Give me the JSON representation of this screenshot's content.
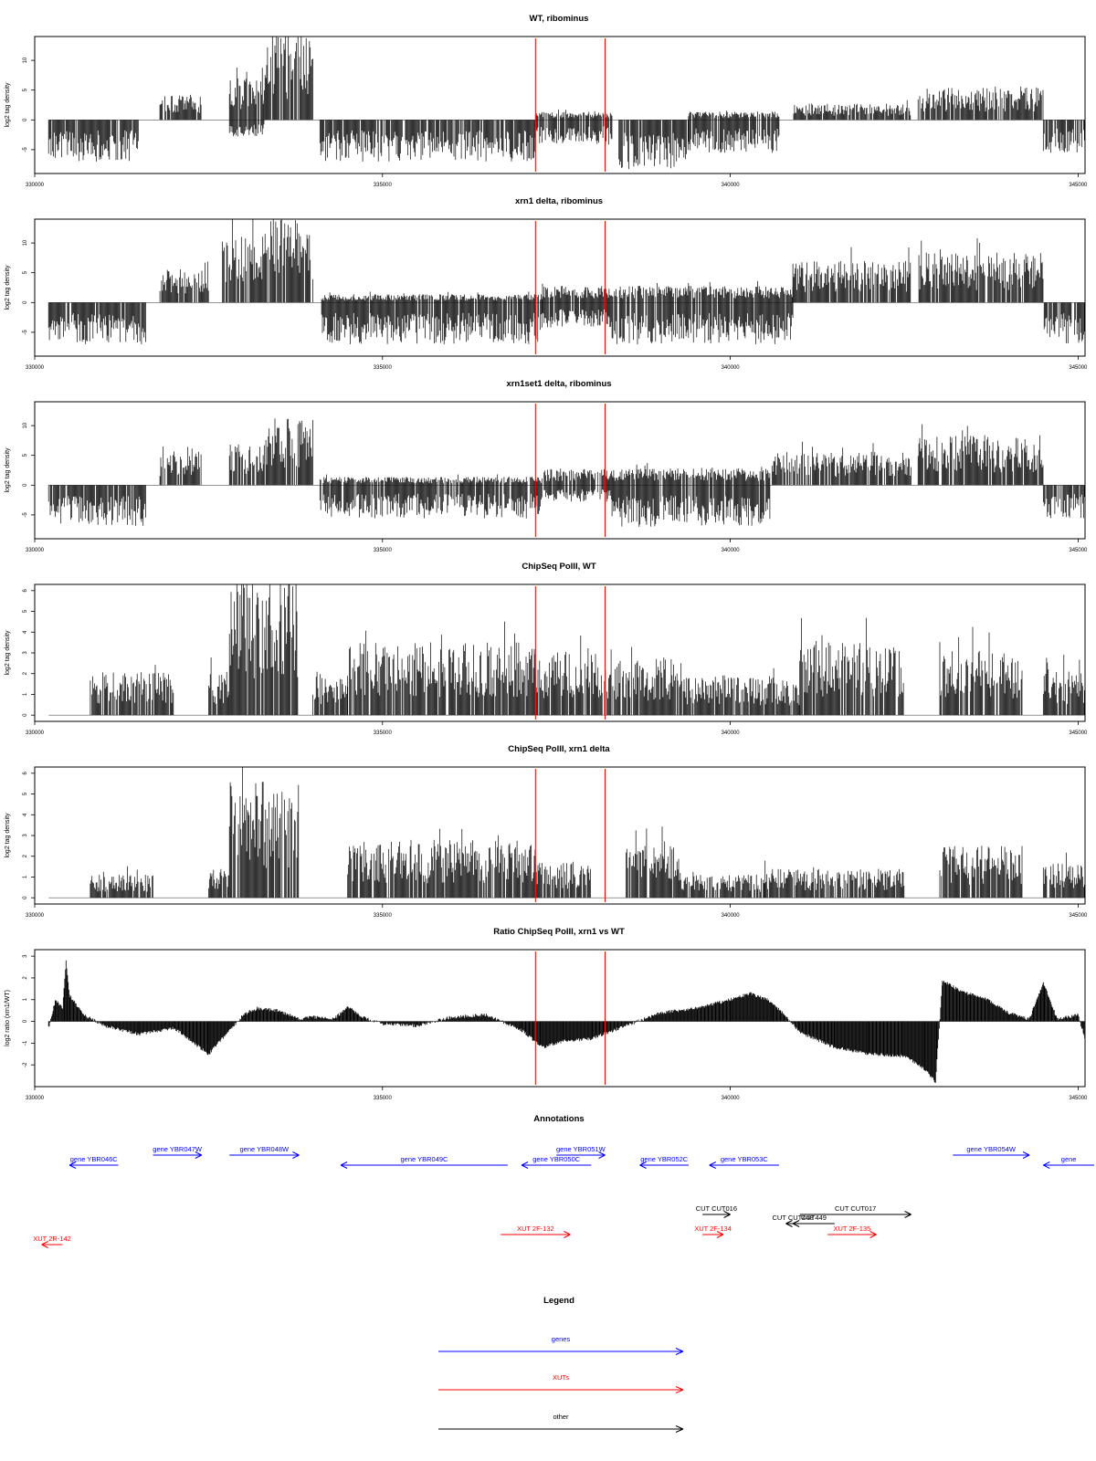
{
  "colors": {
    "gene": "#0000ff",
    "xut": "#ff0000",
    "other": "#000000",
    "marker": "#ff0000",
    "signal": "#000000",
    "frame": "#000000"
  },
  "chart_data": [
    {
      "type": "bar",
      "title": "WT, ribominus",
      "ylabel": "log2 tag density",
      "xlim": [
        330000,
        345100
      ],
      "ylim": [
        -9,
        14
      ],
      "x_ticks": [
        330000,
        335000,
        340000,
        345000
      ],
      "y_ticks": [
        -5,
        0,
        5,
        10
      ],
      "markers_x": [
        337200,
        338200
      ],
      "segments": [
        {
          "x0": 330200,
          "x1": 331500,
          "pos": 0,
          "neg": -5
        },
        {
          "x0": 331800,
          "x1": 332400,
          "pos": 3,
          "neg": 0
        },
        {
          "x0": 332800,
          "x1": 333300,
          "pos": 5,
          "neg": -2
        },
        {
          "x0": 333300,
          "x1": 334000,
          "pos": 10,
          "neg": 0
        },
        {
          "x0": 334100,
          "x1": 337200,
          "pos": 0,
          "neg": -5
        },
        {
          "x0": 337200,
          "x1": 338300,
          "pos": 1,
          "neg": -3
        },
        {
          "x0": 338400,
          "x1": 339400,
          "pos": 0,
          "neg": -6
        },
        {
          "x0": 339400,
          "x1": 340700,
          "pos": 1,
          "neg": -4
        },
        {
          "x0": 340900,
          "x1": 342600,
          "pos": 2,
          "neg": 0
        },
        {
          "x0": 342700,
          "x1": 344500,
          "pos": 4,
          "neg": 0
        },
        {
          "x0": 344500,
          "x1": 345100,
          "pos": 0,
          "neg": -4
        }
      ]
    },
    {
      "type": "bar",
      "title": "xrn1 delta, ribominus",
      "ylabel": "log2 tag density",
      "xlim": [
        330000,
        345100
      ],
      "ylim": [
        -9,
        14
      ],
      "x_ticks": [
        330000,
        335000,
        340000,
        345000
      ],
      "y_ticks": [
        -5,
        0,
        5,
        10
      ],
      "markers_x": [
        337200,
        338200
      ],
      "segments": [
        {
          "x0": 330200,
          "x1": 331600,
          "pos": 0,
          "neg": -5
        },
        {
          "x0": 331800,
          "x1": 332500,
          "pos": 4,
          "neg": 0
        },
        {
          "x0": 332700,
          "x1": 333300,
          "pos": 8,
          "neg": 0
        },
        {
          "x0": 333300,
          "x1": 334000,
          "pos": 10,
          "neg": 0
        },
        {
          "x0": 334100,
          "x1": 337300,
          "pos": 1,
          "neg": -5
        },
        {
          "x0": 337300,
          "x1": 338300,
          "pos": 2,
          "neg": -3
        },
        {
          "x0": 338300,
          "x1": 340900,
          "pos": 2,
          "neg": -5
        },
        {
          "x0": 340900,
          "x1": 342600,
          "pos": 5,
          "neg": 0
        },
        {
          "x0": 342700,
          "x1": 344500,
          "pos": 6,
          "neg": 0
        },
        {
          "x0": 344500,
          "x1": 345100,
          "pos": 0,
          "neg": -5
        }
      ]
    },
    {
      "type": "bar",
      "title": "xrn1set1 delta, ribominus",
      "ylabel": "log2 tag density",
      "xlim": [
        330000,
        345100
      ],
      "ylim": [
        -9,
        14
      ],
      "x_ticks": [
        330000,
        335000,
        340000,
        345000
      ],
      "y_ticks": [
        -5,
        0,
        5,
        10
      ],
      "markers_x": [
        337200,
        338200
      ],
      "segments": [
        {
          "x0": 330200,
          "x1": 331600,
          "pos": 0,
          "neg": -5
        },
        {
          "x0": 331800,
          "x1": 332400,
          "pos": 4,
          "neg": 0
        },
        {
          "x0": 332800,
          "x1": 333300,
          "pos": 5,
          "neg": 0
        },
        {
          "x0": 333300,
          "x1": 334000,
          "pos": 8,
          "neg": 0
        },
        {
          "x0": 334100,
          "x1": 337300,
          "pos": 1,
          "neg": -4
        },
        {
          "x0": 337300,
          "x1": 338300,
          "pos": 2,
          "neg": -2
        },
        {
          "x0": 338300,
          "x1": 340600,
          "pos": 2,
          "neg": -5
        },
        {
          "x0": 340600,
          "x1": 342600,
          "pos": 4,
          "neg": 0
        },
        {
          "x0": 342700,
          "x1": 344500,
          "pos": 6,
          "neg": 0
        },
        {
          "x0": 344500,
          "x1": 345100,
          "pos": 0,
          "neg": -4
        }
      ]
    },
    {
      "type": "bar",
      "title": "ChipSeq PolII, WT",
      "ylabel": "log2 tag density",
      "xlim": [
        330000,
        345100
      ],
      "ylim": [
        -0.3,
        6.3
      ],
      "x_ticks": [
        330000,
        335000,
        340000,
        345000
      ],
      "y_ticks": [
        0,
        1,
        2,
        3,
        4,
        5,
        6
      ],
      "markers_x": [
        337200,
        338200
      ],
      "segments": [
        {
          "x0": 330200,
          "x1": 330700,
          "pos": 0,
          "neg": 0
        },
        {
          "x0": 330800,
          "x1": 332000,
          "pos": 1.5,
          "neg": 0
        },
        {
          "x0": 332500,
          "x1": 332800,
          "pos": 1.5,
          "neg": 0
        },
        {
          "x0": 332800,
          "x1": 333800,
          "pos": 5,
          "neg": 0
        },
        {
          "x0": 334000,
          "x1": 334500,
          "pos": 1.5,
          "neg": 0
        },
        {
          "x0": 334500,
          "x1": 337200,
          "pos": 2.5,
          "neg": 0
        },
        {
          "x0": 337200,
          "x1": 338500,
          "pos": 2.2,
          "neg": 0
        },
        {
          "x0": 338500,
          "x1": 339300,
          "pos": 2,
          "neg": 0
        },
        {
          "x0": 339300,
          "x1": 341000,
          "pos": 1.3,
          "neg": 0
        },
        {
          "x0": 341000,
          "x1": 342500,
          "pos": 2.5,
          "neg": 0
        },
        {
          "x0": 343000,
          "x1": 344200,
          "pos": 2.2,
          "neg": 0
        },
        {
          "x0": 344500,
          "x1": 345100,
          "pos": 1.5,
          "neg": 0
        }
      ]
    },
    {
      "type": "bar",
      "title": "ChipSeq PolII, xrn1 delta",
      "ylabel": "log2 tag density",
      "xlim": [
        330000,
        345100
      ],
      "ylim": [
        -0.3,
        6.3
      ],
      "x_ticks": [
        330000,
        335000,
        340000,
        345000
      ],
      "y_ticks": [
        0,
        1,
        2,
        3,
        4,
        5,
        6
      ],
      "markers_x": [
        337200,
        338200
      ],
      "segments": [
        {
          "x0": 330200,
          "x1": 330800,
          "pos": 0,
          "neg": 0
        },
        {
          "x0": 330800,
          "x1": 331700,
          "pos": 0.8,
          "neg": 0
        },
        {
          "x0": 332500,
          "x1": 332800,
          "pos": 1,
          "neg": 0
        },
        {
          "x0": 332800,
          "x1": 333800,
          "pos": 4,
          "neg": 0
        },
        {
          "x0": 334500,
          "x1": 337200,
          "pos": 2,
          "neg": 0
        },
        {
          "x0": 337200,
          "x1": 338000,
          "pos": 1.2,
          "neg": 0
        },
        {
          "x0": 338500,
          "x1": 339300,
          "pos": 1.8,
          "neg": 0
        },
        {
          "x0": 339300,
          "x1": 340500,
          "pos": 0.8,
          "neg": 0
        },
        {
          "x0": 340500,
          "x1": 342500,
          "pos": 1,
          "neg": 0
        },
        {
          "x0": 343000,
          "x1": 344200,
          "pos": 1.8,
          "neg": 0
        },
        {
          "x0": 344500,
          "x1": 345100,
          "pos": 1.2,
          "neg": 0
        }
      ]
    },
    {
      "type": "area",
      "title": "Ratio ChipSeq PolII, xrn1 vs WT",
      "ylabel": "log2 ratio (xrn1/WT)",
      "xlim": [
        330000,
        345100
      ],
      "ylim": [
        -3,
        3.3
      ],
      "x_ticks": [
        330000,
        335000,
        340000,
        345000
      ],
      "y_ticks": [
        -2,
        -1,
        0,
        1,
        2,
        3
      ],
      "markers_x": [
        337200,
        338200
      ],
      "x": [
        330200,
        330300,
        330400,
        330450,
        330500,
        330700,
        331000,
        331500,
        332000,
        332500,
        333000,
        333200,
        333500,
        333800,
        334000,
        334300,
        334500,
        334700,
        335000,
        335500,
        336000,
        336500,
        337000,
        337300,
        337600,
        338000,
        338500,
        339000,
        339500,
        340000,
        340300,
        340600,
        341000,
        341500,
        342000,
        342500,
        342800,
        342950,
        343050,
        343300,
        343700,
        344000,
        344300,
        344500,
        344700,
        345000,
        345100
      ],
      "y": [
        -0.3,
        1.0,
        0.6,
        2.8,
        1.2,
        0.3,
        -0.2,
        -0.6,
        -0.3,
        -1.5,
        0.3,
        0.6,
        0.5,
        0.1,
        0.2,
        0.1,
        0.7,
        0.2,
        -0.1,
        -0.2,
        0.2,
        0.3,
        -0.4,
        -1.2,
        -0.9,
        -0.8,
        -0.2,
        0.4,
        0.6,
        1.0,
        1.3,
        0.9,
        -0.5,
        -1.2,
        -1.5,
        -1.6,
        -2.2,
        -2.8,
        1.9,
        1.4,
        1.0,
        0.4,
        0.1,
        1.8,
        0.1,
        0.3,
        -0.8
      ]
    }
  ],
  "annotations": {
    "title": "Annotations",
    "items": [
      {
        "label": "gene YBR046C",
        "x0": 331200,
        "x1": 330500,
        "row": "gene-low",
        "kind": "gene"
      },
      {
        "label": "gene YBR047W",
        "x0": 331700,
        "x1": 332400,
        "row": "gene-high",
        "kind": "gene"
      },
      {
        "label": "gene YBR048W",
        "x0": 332800,
        "x1": 333800,
        "row": "gene-high",
        "kind": "gene"
      },
      {
        "label": "gene YBR049C",
        "x0": 336800,
        "x1": 334400,
        "row": "gene-low",
        "kind": "gene"
      },
      {
        "label": "gene YBR050C",
        "x0": 338000,
        "x1": 337000,
        "row": "gene-low",
        "kind": "gene"
      },
      {
        "label": "gene YBR051W",
        "x0": 337500,
        "x1": 338200,
        "row": "gene-high",
        "kind": "gene"
      },
      {
        "label": "gene YBR052C",
        "x0": 339400,
        "x1": 338700,
        "row": "gene-low",
        "kind": "gene"
      },
      {
        "label": "gene YBR053C",
        "x0": 340700,
        "x1": 339700,
        "row": "gene-low",
        "kind": "gene"
      },
      {
        "label": "gene YBR054W",
        "x0": 343200,
        "x1": 344300,
        "row": "gene-high",
        "kind": "gene"
      },
      {
        "label": "gene",
        "x0": 346200,
        "x1": 344500,
        "row": "gene-low",
        "kind": "gene"
      },
      {
        "label": "CUT CUT016",
        "x0": 339600,
        "x1": 340000,
        "row": "cut-high",
        "kind": "other"
      },
      {
        "label": "CUT CUT017",
        "x0": 341000,
        "x1": 342600,
        "row": "cut-high",
        "kind": "other"
      },
      {
        "label": "CUT CUT448",
        "x0": 341000,
        "x1": 340800,
        "row": "cut-low",
        "kind": "other"
      },
      {
        "label": "CUT449",
        "x0": 341500,
        "x1": 340900,
        "row": "cut-low",
        "kind": "other"
      },
      {
        "label": "XUT 2F-132",
        "x0": 336700,
        "x1": 337700,
        "row": "xut",
        "kind": "xut"
      },
      {
        "label": "XUT 2F-134",
        "x0": 339600,
        "x1": 339900,
        "row": "xut",
        "kind": "xut"
      },
      {
        "label": "XUT 2F-135",
        "x0": 341400,
        "x1": 342100,
        "row": "xut",
        "kind": "xut"
      },
      {
        "label": "XUT 2R-142",
        "x0": 330400,
        "x1": 330100,
        "row": "xut-low",
        "kind": "xut"
      }
    ]
  },
  "legend": {
    "title": "Legend",
    "items": [
      {
        "label": "genes",
        "kind": "gene"
      },
      {
        "label": "XUTs",
        "kind": "xut"
      },
      {
        "label": "other",
        "kind": "other"
      }
    ]
  }
}
